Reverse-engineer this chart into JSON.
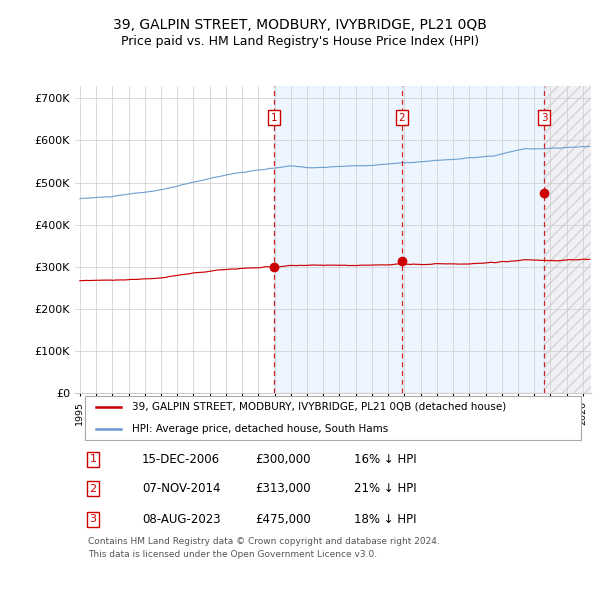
{
  "title": "39, GALPIN STREET, MODBURY, IVYBRIDGE, PL21 0QB",
  "subtitle": "Price paid vs. HM Land Registry's House Price Index (HPI)",
  "title_fontsize": 10,
  "subtitle_fontsize": 9,
  "ylabel_ticks": [
    "£0",
    "£100K",
    "£200K",
    "£300K",
    "£400K",
    "£500K",
    "£600K",
    "£700K"
  ],
  "ytick_values": [
    0,
    100000,
    200000,
    300000,
    400000,
    500000,
    600000,
    700000
  ],
  "ylim": [
    0,
    730000
  ],
  "xlim_start": 1994.7,
  "xlim_end": 2026.5,
  "sale_dates": [
    2006.958,
    2014.853,
    2023.603
  ],
  "sale_prices": [
    300000,
    313000,
    475000
  ],
  "sale_labels": [
    "1",
    "2",
    "3"
  ],
  "vline_color": "#cc0000",
  "sale_dot_color": "#cc0000",
  "hpi_line_color": "#6699cc",
  "price_line_color": "#cc0000",
  "shade_color": "#ddeeff",
  "legend_label_property": "39, GALPIN STREET, MODBURY, IVYBRIDGE, PL21 0QB (detached house)",
  "legend_label_hpi": "HPI: Average price, detached house, South Hams",
  "table_rows": [
    [
      "1",
      "15-DEC-2006",
      "£300,000",
      "16% ↓ HPI"
    ],
    [
      "2",
      "07-NOV-2014",
      "£313,000",
      "21% ↓ HPI"
    ],
    [
      "3",
      "08-AUG-2023",
      "£475,000",
      "18% ↓ HPI"
    ]
  ],
  "footer_text": "Contains HM Land Registry data © Crown copyright and database right 2024.\nThis data is licensed under the Open Government Licence v3.0.",
  "bg_color": "#ffffff",
  "grid_color": "#cccccc",
  "box_label_color": "#cc0000",
  "box_label_border": "#cc0000"
}
